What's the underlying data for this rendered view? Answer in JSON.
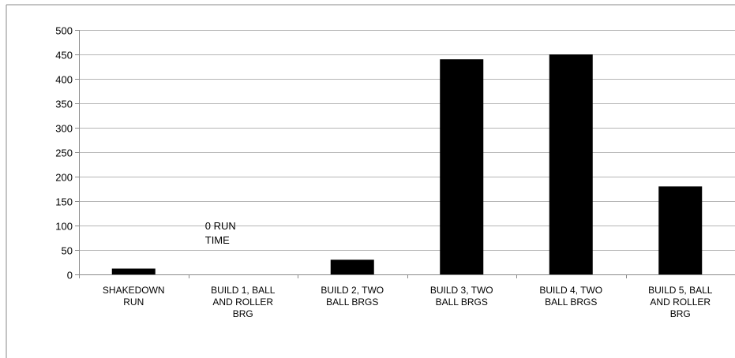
{
  "chart_data": {
    "type": "bar",
    "categories": [
      [
        "SHAKEDOWN",
        "RUN"
      ],
      [
        "BUILD 1, BALL",
        "AND ROLLER",
        "BRG"
      ],
      [
        "BUILD 2, TWO",
        "BALL BRGS"
      ],
      [
        "BUILD 3, TWO",
        "BALL BRGS"
      ],
      [
        "BUILD 4, TWO",
        "BALL BRGS"
      ],
      [
        "BUILD 5, BALL",
        "AND ROLLER",
        "BRG"
      ]
    ],
    "values": [
      12,
      0,
      30,
      440,
      450,
      180
    ],
    "ylim": [
      0,
      500
    ],
    "yticks": [
      0,
      50,
      100,
      150,
      200,
      250,
      300,
      350,
      400,
      450,
      500
    ],
    "grid": true,
    "legend": "none",
    "bar_color": "#000000",
    "annotations": [
      {
        "category_index": 1,
        "lines": [
          "0 RUN",
          "TIME"
        ]
      }
    ]
  }
}
